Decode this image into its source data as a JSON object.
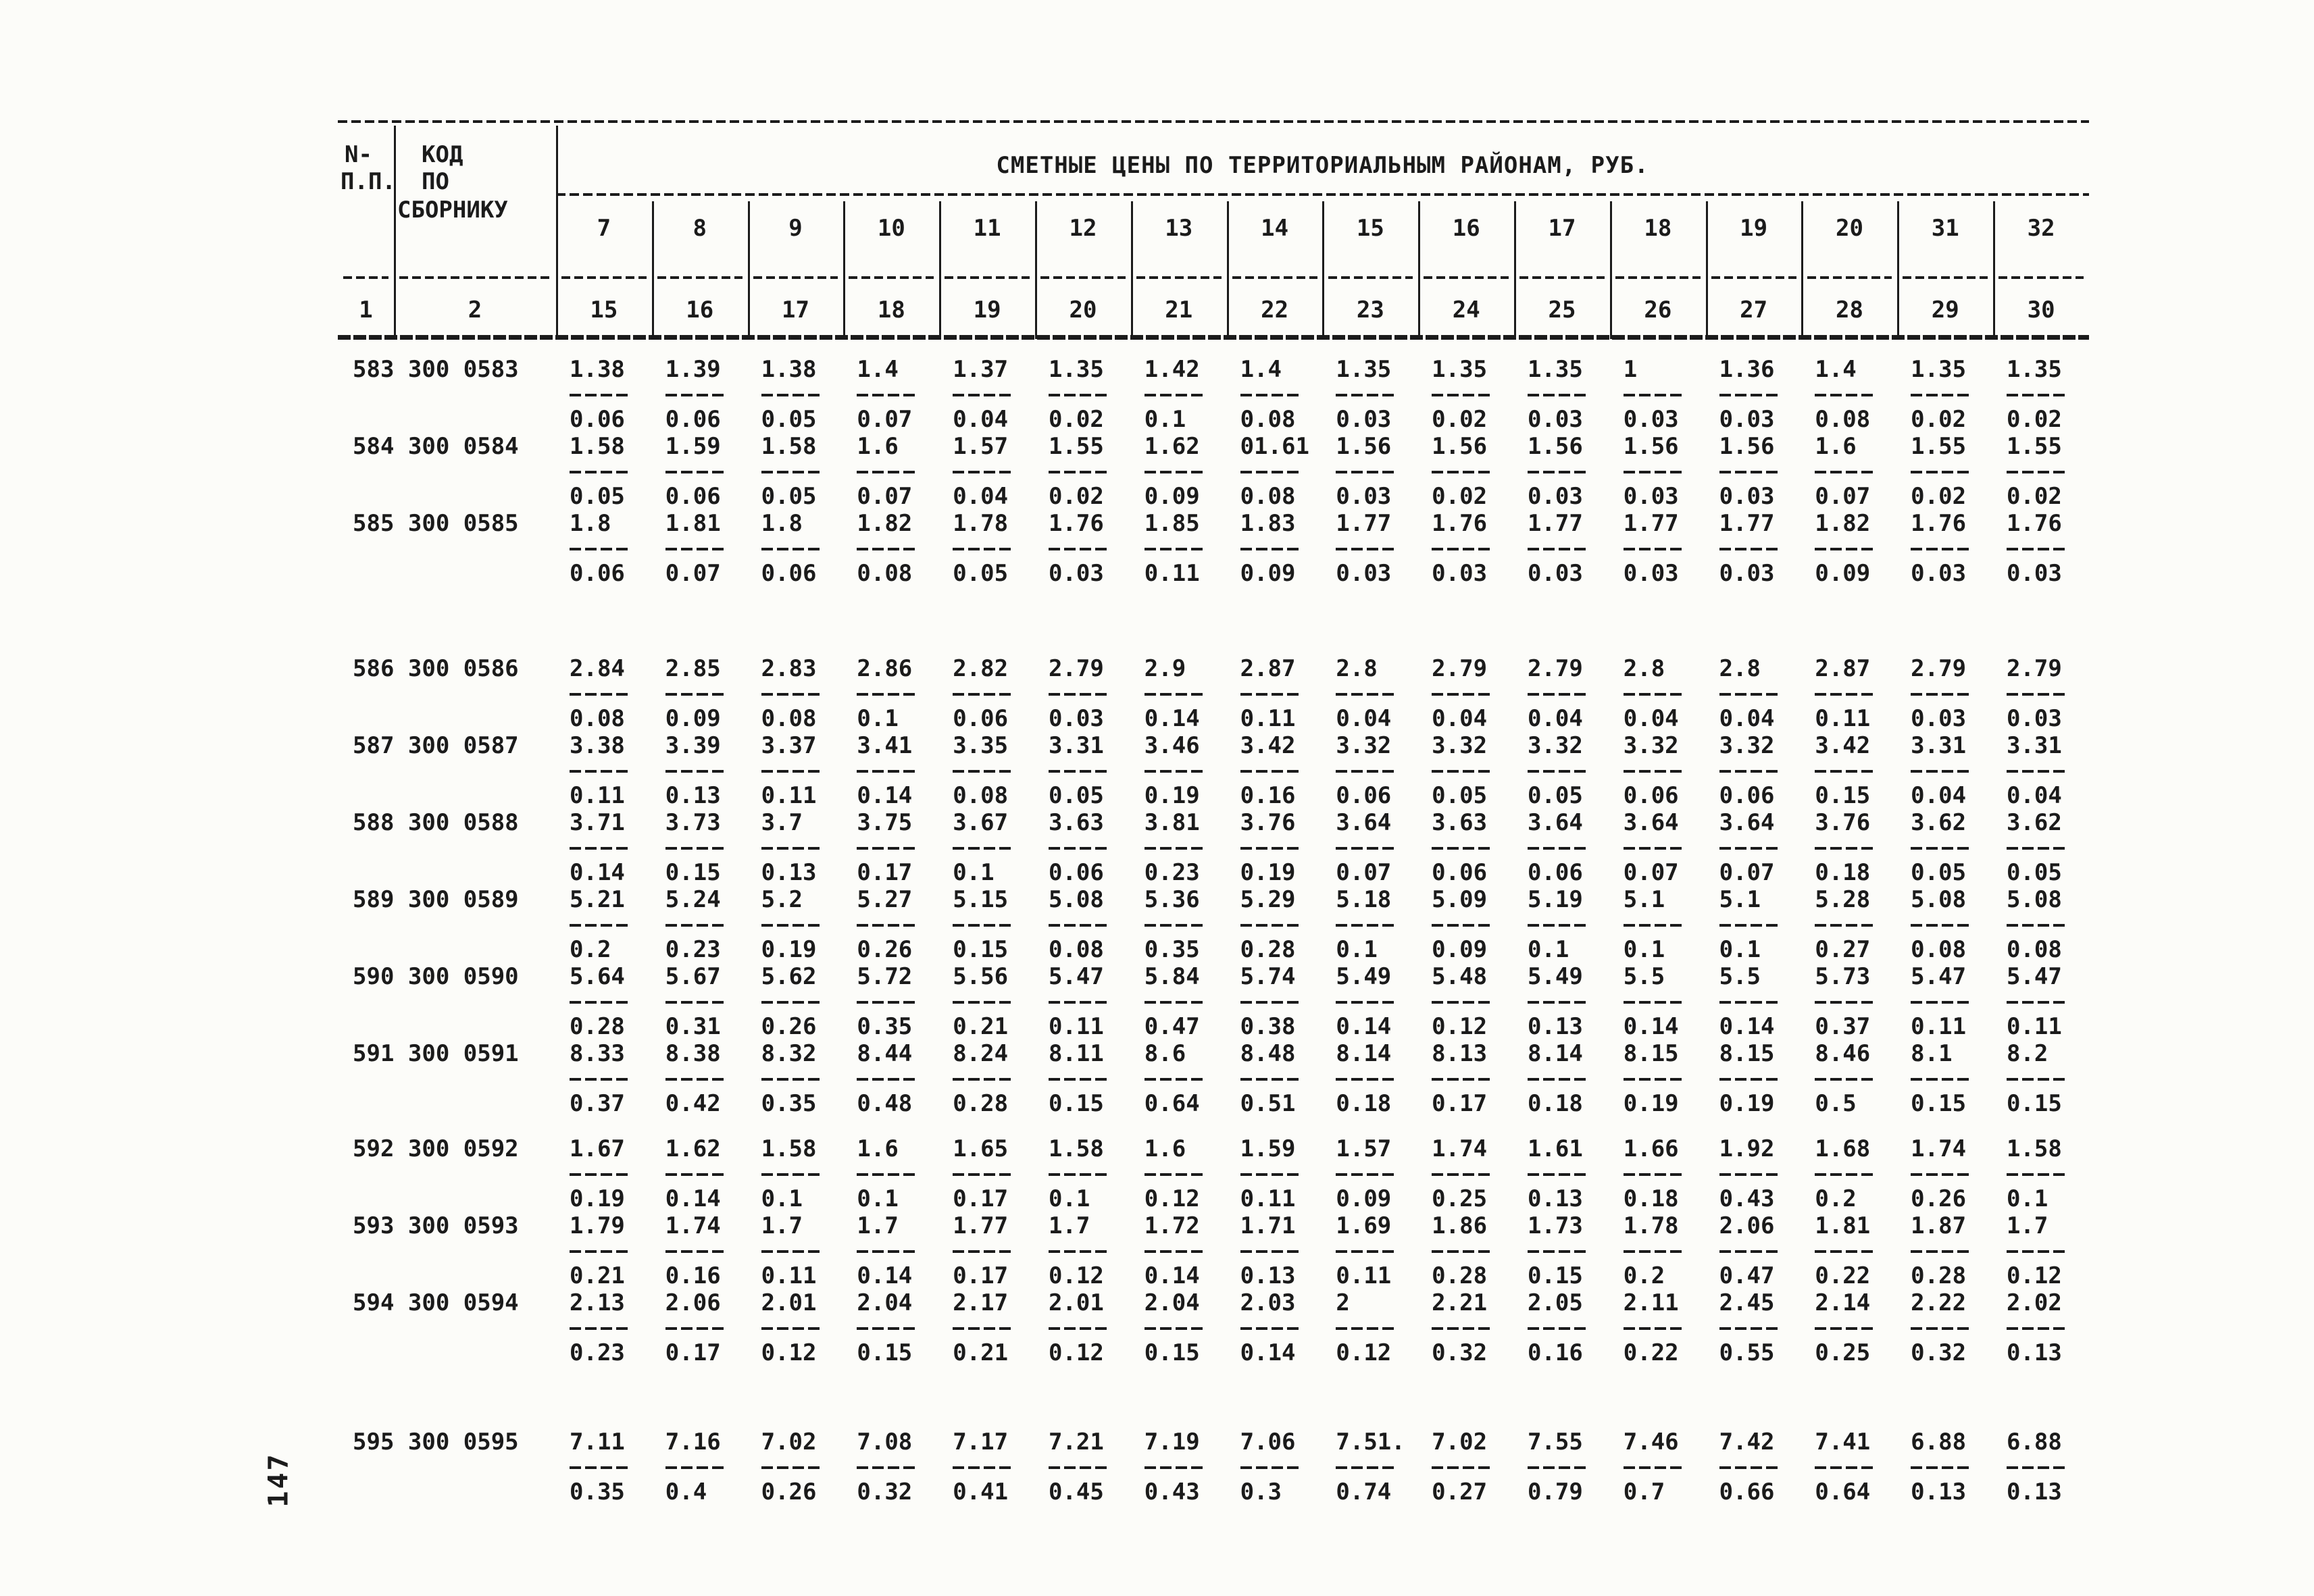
{
  "page": {
    "number": "147"
  },
  "header": {
    "col1_line1": "N-",
    "col1_line2": "П.П.",
    "col2_line1": "КОД",
    "col2_line2": "ПО",
    "col2_line3": "СБОРНИКУ",
    "title": "СМЕТНЫЕ ЦЕНЫ ПО ТЕРРИТОРИАЛЬНЫМ РАЙОНАМ, РУБ.",
    "col1_number": "1",
    "col2_number": "2",
    "district_numbers_top": [
      "7",
      "8",
      "9",
      "10",
      "11",
      "12",
      "13",
      "14",
      "15",
      "16",
      "17",
      "18",
      "19",
      "20",
      "31",
      "32"
    ],
    "district_numbers_bottom": [
      "15",
      "16",
      "17",
      "18",
      "19",
      "20",
      "21",
      "22",
      "23",
      "24",
      "25",
      "26",
      "27",
      "28",
      "29",
      "30"
    ]
  },
  "table": {
    "groups": [
      {
        "rows": [
          {
            "label": "583 300 0583",
            "num": [
              "1.38",
              "1.39",
              "1.38",
              "1.4",
              "1.37",
              "1.35",
              "1.42",
              "1.4",
              "1.35",
              "1.35",
              "1.35",
              "1",
              "1.36",
              "1.4",
              "1.35",
              "1.35"
            ],
            "den": [
              "0.06",
              "0.06",
              "0.05",
              "0.07",
              "0.04",
              "0.02",
              "0.1",
              "0.08",
              "0.03",
              "0.02",
              "0.03",
              "0.03",
              "0.03",
              "0.08",
              "0.02",
              "0.02"
            ]
          },
          {
            "label": "584 300 0584",
            "num": [
              "1.58",
              "1.59",
              "1.58",
              "1.6",
              "1.57",
              "1.55",
              "1.62",
              "01.61",
              "1.56",
              "1.56",
              "1.56",
              "1.56",
              "1.56",
              "1.6",
              "1.55",
              "1.55"
            ],
            "den": [
              "0.05",
              "0.06",
              "0.05",
              "0.07",
              "0.04",
              "0.02",
              "0.09",
              "0.08",
              "0.03",
              "0.02",
              "0.03",
              "0.03",
              "0.03",
              "0.07",
              "0.02",
              "0.02"
            ]
          },
          {
            "label": "585 300 0585",
            "num": [
              "1.8",
              "1.81",
              "1.8",
              "1.82",
              "1.78",
              "1.76",
              "1.85",
              "1.83",
              "1.77",
              "1.76",
              "1.77",
              "1.77",
              "1.77",
              "1.82",
              "1.76",
              "1.76"
            ],
            "den": [
              "0.06",
              "0.07",
              "0.06",
              "0.08",
              "0.05",
              "0.03",
              "0.11",
              "0.09",
              "0.03",
              "0.03",
              "0.03",
              "0.03",
              "0.03",
              "0.09",
              "0.03",
              "0.03"
            ]
          }
        ]
      },
      {
        "rows": [
          {
            "label": "586 300 0586",
            "num": [
              "2.84",
              "2.85",
              "2.83",
              "2.86",
              "2.82",
              "2.79",
              "2.9",
              "2.87",
              "2.8",
              "2.79",
              "2.79",
              "2.8",
              "2.8",
              "2.87",
              "2.79",
              "2.79"
            ],
            "den": [
              "0.08",
              "0.09",
              "0.08",
              "0.1",
              "0.06",
              "0.03",
              "0.14",
              "0.11",
              "0.04",
              "0.04",
              "0.04",
              "0.04",
              "0.04",
              "0.11",
              "0.03",
              "0.03"
            ]
          },
          {
            "label": "587 300 0587",
            "num": [
              "3.38",
              "3.39",
              "3.37",
              "3.41",
              "3.35",
              "3.31",
              "3.46",
              "3.42",
              "3.32",
              "3.32",
              "3.32",
              "3.32",
              "3.32",
              "3.42",
              "3.31",
              "3.31"
            ],
            "den": [
              "0.11",
              "0.13",
              "0.11",
              "0.14",
              "0.08",
              "0.05",
              "0.19",
              "0.16",
              "0.06",
              "0.05",
              "0.05",
              "0.06",
              "0.06",
              "0.15",
              "0.04",
              "0.04"
            ]
          },
          {
            "label": "588 300 0588",
            "num": [
              "3.71",
              "3.73",
              "3.7",
              "3.75",
              "3.67",
              "3.63",
              "3.81",
              "3.76",
              "3.64",
              "3.63",
              "3.64",
              "3.64",
              "3.64",
              "3.76",
              "3.62",
              "3.62"
            ],
            "den": [
              "0.14",
              "0.15",
              "0.13",
              "0.17",
              "0.1",
              "0.06",
              "0.23",
              "0.19",
              "0.07",
              "0.06",
              "0.06",
              "0.07",
              "0.07",
              "0.18",
              "0.05",
              "0.05"
            ]
          },
          {
            "label": "589 300 0589",
            "num": [
              "5.21",
              "5.24",
              "5.2",
              "5.27",
              "5.15",
              "5.08",
              "5.36",
              "5.29",
              "5.18",
              "5.09",
              "5.19",
              "5.1",
              "5.1",
              "5.28",
              "5.08",
              "5.08"
            ],
            "den": [
              "0.2",
              "0.23",
              "0.19",
              "0.26",
              "0.15",
              "0.08",
              "0.35",
              "0.28",
              "0.1",
              "0.09",
              "0.1",
              "0.1",
              "0.1",
              "0.27",
              "0.08",
              "0.08"
            ]
          },
          {
            "label": "590 300 0590",
            "num": [
              "5.64",
              "5.67",
              "5.62",
              "5.72",
              "5.56",
              "5.47",
              "5.84",
              "5.74",
              "5.49",
              "5.48",
              "5.49",
              "5.5",
              "5.5",
              "5.73",
              "5.47",
              "5.47"
            ],
            "den": [
              "0.28",
              "0.31",
              "0.26",
              "0.35",
              "0.21",
              "0.11",
              "0.47",
              "0.38",
              "0.14",
              "0.12",
              "0.13",
              "0.14",
              "0.14",
              "0.37",
              "0.11",
              "0.11"
            ]
          },
          {
            "label": "591 300 0591",
            "num": [
              "8.33",
              "8.38",
              "8.32",
              "8.44",
              "8.24",
              "8.11",
              "8.6",
              "8.48",
              "8.14",
              "8.13",
              "8.14",
              "8.15",
              "8.15",
              "8.46",
              "8.1",
              "8.2"
            ],
            "den": [
              "0.37",
              "0.42",
              "0.35",
              "0.48",
              "0.28",
              "0.15",
              "0.64",
              "0.51",
              "0.18",
              "0.17",
              "0.18",
              "0.19",
              "0.19",
              "0.5",
              "0.15",
              "0.15"
            ]
          }
        ]
      },
      {
        "rows": [
          {
            "label": "592 300 0592",
            "num": [
              "1.67",
              "1.62",
              "1.58",
              "1.6",
              "1.65",
              "1.58",
              "1.6",
              "1.59",
              "1.57",
              "1.74",
              "1.61",
              "1.66",
              "1.92",
              "1.68",
              "1.74",
              "1.58"
            ],
            "den": [
              "0.19",
              "0.14",
              "0.1",
              "0.1",
              "0.17",
              "0.1",
              "0.12",
              "0.11",
              "0.09",
              "0.25",
              "0.13",
              "0.18",
              "0.43",
              "0.2",
              "0.26",
              "0.1"
            ]
          },
          {
            "label": "593 300 0593",
            "num": [
              "1.79",
              "1.74",
              "1.7",
              "1.7",
              "1.77",
              "1.7",
              "1.72",
              "1.71",
              "1.69",
              "1.86",
              "1.73",
              "1.78",
              "2.06",
              "1.81",
              "1.87",
              "1.7"
            ],
            "den": [
              "0.21",
              "0.16",
              "0.11",
              "0.14",
              "0.17",
              "0.12",
              "0.14",
              "0.13",
              "0.11",
              "0.28",
              "0.15",
              "0.2",
              "0.47",
              "0.22",
              "0.28",
              "0.12"
            ]
          },
          {
            "label": "594 300 0594",
            "num": [
              "2.13",
              "2.06",
              "2.01",
              "2.04",
              "2.17",
              "2.01",
              "2.04",
              "2.03",
              "2",
              "2.21",
              "2.05",
              "2.11",
              "2.45",
              "2.14",
              "2.22",
              "2.02"
            ],
            "den": [
              "0.23",
              "0.17",
              "0.12",
              "0.15",
              "0.21",
              "0.12",
              "0.15",
              "0.14",
              "0.12",
              "0.32",
              "0.16",
              "0.22",
              "0.55",
              "0.25",
              "0.32",
              "0.13"
            ]
          }
        ]
      },
      {
        "rows": [
          {
            "label": "595 300 0595",
            "num": [
              "7.11",
              "7.16",
              "7.02",
              "7.08",
              "7.17",
              "7.21",
              "7.19",
              "7.06",
              "7.51.",
              "7.02",
              "7.55",
              "7.46",
              "7.42",
              "7.41",
              "6.88",
              "6.88"
            ],
            "den": [
              "0.35",
              "0.4",
              "0.26",
              "0.32",
              "0.41",
              "0.45",
              "0.43",
              "0.3",
              "0.74",
              "0.27",
              "0.79",
              "0.7",
              "0.66",
              "0.64",
              "0.13",
              "0.13"
            ]
          }
        ]
      }
    ]
  }
}
